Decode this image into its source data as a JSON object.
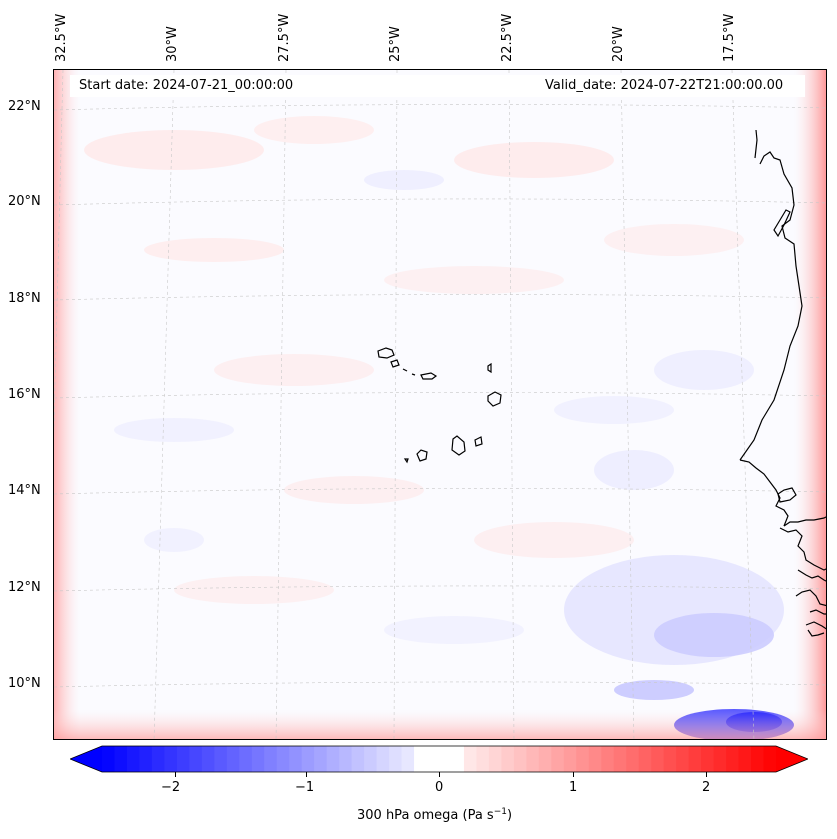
{
  "map": {
    "start_date": "Start date: 2024-07-21_00:00:00",
    "valid_date": "Valid_date: 2024-07-22T21:00:00.00",
    "lat_labels": [
      "22°N",
      "20°N",
      "18°N",
      "16°N",
      "14°N",
      "12°N",
      "10°N"
    ],
    "lon_labels": [
      "32.5°W",
      "30°W",
      "27.5°W",
      "25°W",
      "22.5°W",
      "20°W",
      "17.5°W"
    ],
    "background_color": "#fbfbff",
    "coastline_color": "#000000"
  },
  "colorbar": {
    "label_main": "300 hPa omega (Pa s",
    "label_exp": "−1",
    "label_close": ")",
    "ticks": [
      "−2",
      "−1",
      "0",
      "1",
      "2"
    ],
    "min": -2.7,
    "max": 2.7,
    "colors": {
      "negative": "#0000ff",
      "zero": "#ffffff",
      "positive": "#ff0000"
    }
  }
}
